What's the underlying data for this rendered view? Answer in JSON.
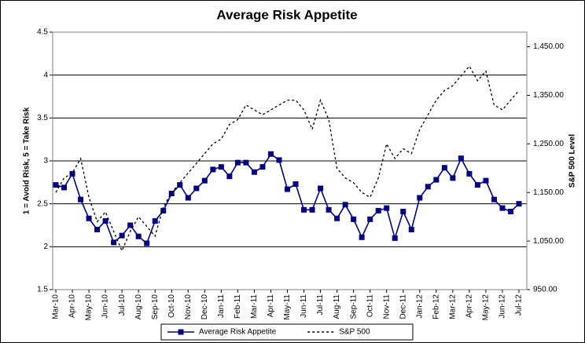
{
  "chart_data": {
    "type": "line",
    "title": "Average Risk Appetite",
    "y_label": "1 = Avoid Risk, 5 = Take Risk",
    "y2_label": "S&P 500 Level",
    "categories": [
      "Mar-10",
      null,
      "Apr-10",
      null,
      "May-10",
      null,
      "Jun-10",
      null,
      "Jul-10",
      null,
      "Aug-10",
      null,
      "Sep-10",
      null,
      "Oct-10",
      null,
      "Nov-10",
      null,
      "Dec-10",
      null,
      "Jan-11",
      null,
      "Feb-11",
      null,
      "Mar-11",
      null,
      "Apr-11",
      null,
      "May-11",
      null,
      "Jun-11",
      null,
      "Jul-11",
      null,
      "Aug-11",
      null,
      "Sep-11",
      null,
      "Oct-11",
      null,
      "Nov-11",
      null,
      "Dec-11",
      null,
      "Jan-12",
      null,
      "Feb-12",
      null,
      "Mar-12",
      null,
      "Apr-12",
      null,
      "May-12",
      null,
      "Jun-12",
      null,
      "Jul-12"
    ],
    "series": [
      {
        "name": "Average Risk Appetite",
        "color": "#000080",
        "style": "solid",
        "marker": true,
        "values": [
          2.72,
          2.69,
          2.85,
          2.55,
          2.33,
          2.2,
          2.3,
          2.05,
          2.13,
          2.25,
          2.12,
          2.04,
          2.3,
          2.42,
          2.62,
          2.72,
          2.57,
          2.68,
          2.77,
          2.9,
          2.93,
          2.82,
          2.98,
          2.98,
          2.87,
          2.93,
          3.08,
          3.01,
          2.67,
          2.73,
          2.43,
          2.43,
          2.68,
          2.43,
          2.33,
          2.49,
          2.32,
          2.11,
          2.32,
          2.42,
          2.45,
          2.1,
          2.41,
          2.2,
          2.57,
          2.7,
          2.78,
          2.92,
          2.8,
          3.03,
          2.85,
          2.72,
          2.77,
          2.55,
          2.45,
          2.41,
          2.5
        ]
      },
      {
        "name": "S&P 500",
        "color": "#000000",
        "style": "dotted",
        "marker": false,
        "axis": "y2",
        "values": [
          1150,
          1180,
          1190,
          1220,
          1140,
          1090,
          1110,
          1070,
          1030,
          1070,
          1100,
          1080,
          1060,
          1120,
          1150,
          1170,
          1190,
          1210,
          1230,
          1250,
          1260,
          1290,
          1300,
          1330,
          1320,
          1310,
          1320,
          1330,
          1340,
          1340,
          1320,
          1280,
          1340,
          1300,
          1200,
          1180,
          1170,
          1150,
          1140,
          1180,
          1250,
          1220,
          1240,
          1230,
          1280,
          1310,
          1340,
          1360,
          1370,
          1390,
          1410,
          1380,
          1400,
          1330,
          1320,
          1340,
          1360
        ]
      }
    ],
    "ylim": [
      1.5,
      4.5
    ],
    "yticks": [
      1.5,
      2,
      2.5,
      3,
      3.5,
      4,
      4.5
    ],
    "y2lim": [
      950,
      1480
    ],
    "y2ticks": [
      {
        "value": 950,
        "label": "950.00"
      },
      {
        "value": 1050,
        "label": "1,050.00"
      },
      {
        "value": 1150,
        "label": "1,150.00"
      },
      {
        "value": 1250,
        "label": "1,250.00"
      },
      {
        "value": 1350,
        "label": "1,350.00"
      },
      {
        "value": 1450,
        "label": "1,450.00"
      }
    ],
    "grid": true,
    "legend": "bottom"
  }
}
